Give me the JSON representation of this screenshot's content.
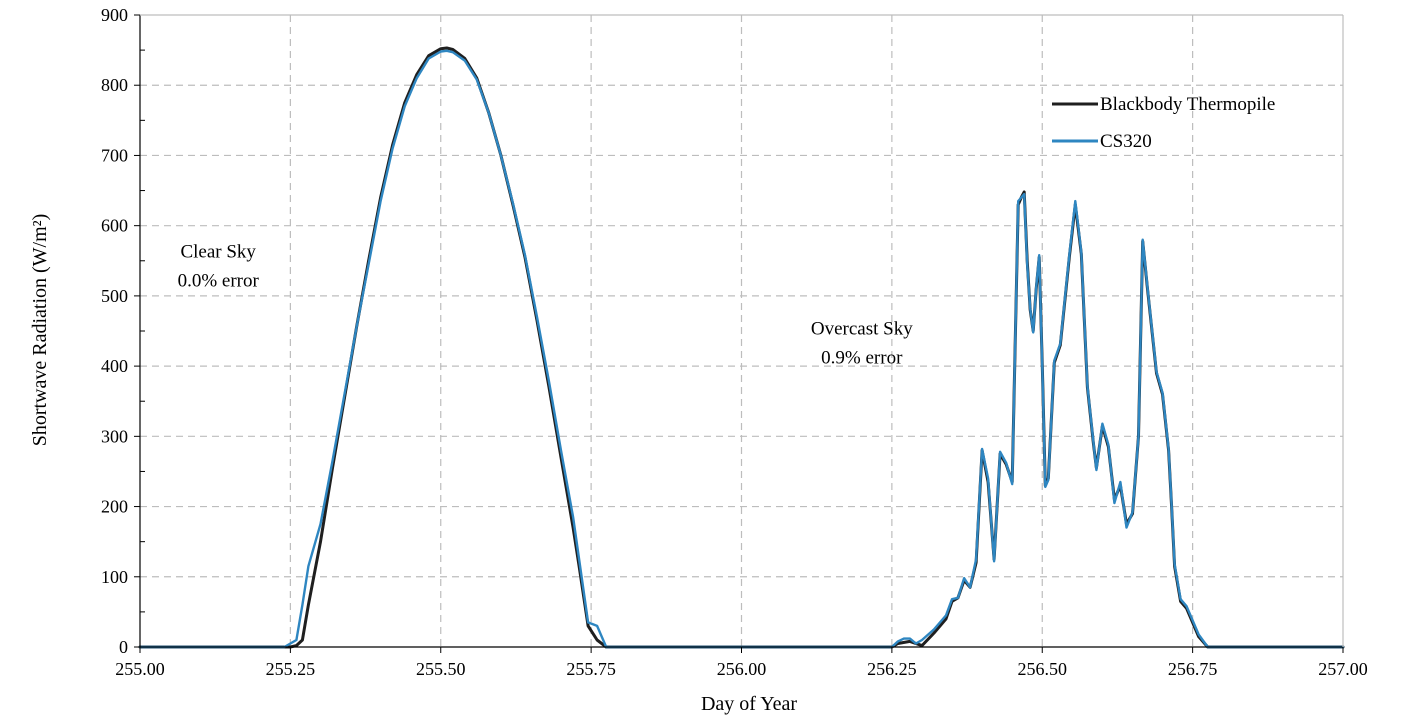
{
  "chart_data": {
    "type": "line",
    "title": "",
    "xlabel": "Day of Year",
    "ylabel": "Shortwave Radiation (W/m²)",
    "xlim": [
      255.0,
      257.0
    ],
    "ylim": [
      0,
      900
    ],
    "x_ticks": [
      "255.00",
      "255.25",
      "255.50",
      "255.75",
      "256.00",
      "256.25",
      "256.50",
      "256.75",
      "257.00"
    ],
    "y_ticks": [
      "0",
      "100",
      "200",
      "300",
      "400",
      "500",
      "600",
      "700",
      "800",
      "900"
    ],
    "grid": true,
    "legend_position": "top-right",
    "annotations": [
      {
        "lines": [
          "Clear Sky",
          "0.0% error"
        ],
        "x": 255.13,
        "y": 555
      },
      {
        "lines": [
          "Overcast Sky",
          "0.9% error"
        ],
        "x": 256.2,
        "y": 445
      }
    ],
    "series": [
      {
        "name": "Blackbody Thermopile",
        "color": "#1f1f1f",
        "points": [
          [
            255.0,
            0
          ],
          [
            255.24,
            0
          ],
          [
            255.25,
            0
          ],
          [
            255.26,
            2
          ],
          [
            255.27,
            10
          ],
          [
            255.28,
            60
          ],
          [
            255.3,
            150
          ],
          [
            255.32,
            255
          ],
          [
            255.34,
            355
          ],
          [
            255.36,
            455
          ],
          [
            255.38,
            550
          ],
          [
            255.4,
            640
          ],
          [
            255.42,
            715
          ],
          [
            255.44,
            775
          ],
          [
            255.46,
            815
          ],
          [
            255.48,
            842
          ],
          [
            255.5,
            852
          ],
          [
            255.51,
            853
          ],
          [
            255.52,
            851
          ],
          [
            255.54,
            838
          ],
          [
            255.56,
            810
          ],
          [
            255.58,
            760
          ],
          [
            255.6,
            700
          ],
          [
            255.62,
            630
          ],
          [
            255.64,
            555
          ],
          [
            255.66,
            465
          ],
          [
            255.68,
            370
          ],
          [
            255.7,
            270
          ],
          [
            255.72,
            170
          ],
          [
            255.73,
            115
          ],
          [
            255.745,
            30
          ],
          [
            255.76,
            10
          ],
          [
            255.775,
            0
          ],
          [
            256.25,
            0
          ],
          [
            256.26,
            5
          ],
          [
            256.28,
            8
          ],
          [
            256.3,
            2
          ],
          [
            256.32,
            20
          ],
          [
            256.34,
            40
          ],
          [
            256.35,
            65
          ],
          [
            256.36,
            70
          ],
          [
            256.37,
            95
          ],
          [
            256.38,
            85
          ],
          [
            256.39,
            120
          ],
          [
            256.4,
            280
          ],
          [
            256.41,
            235
          ],
          [
            256.42,
            125
          ],
          [
            256.43,
            275
          ],
          [
            256.44,
            260
          ],
          [
            256.45,
            235
          ],
          [
            256.46,
            630
          ],
          [
            256.465,
            640
          ],
          [
            256.47,
            648
          ],
          [
            256.475,
            550
          ],
          [
            256.48,
            480
          ],
          [
            256.485,
            450
          ],
          [
            256.49,
            510
          ],
          [
            256.495,
            555
          ],
          [
            256.5,
            400
          ],
          [
            256.505,
            230
          ],
          [
            256.51,
            240
          ],
          [
            256.52,
            405
          ],
          [
            256.53,
            430
          ],
          [
            256.545,
            555
          ],
          [
            256.555,
            630
          ],
          [
            256.565,
            560
          ],
          [
            256.575,
            370
          ],
          [
            256.585,
            290
          ],
          [
            256.59,
            255
          ],
          [
            256.6,
            315
          ],
          [
            256.61,
            285
          ],
          [
            256.62,
            210
          ],
          [
            256.63,
            230
          ],
          [
            256.64,
            175
          ],
          [
            256.65,
            190
          ],
          [
            256.66,
            300
          ],
          [
            256.667,
            578
          ],
          [
            256.675,
            510
          ],
          [
            256.685,
            430
          ],
          [
            256.69,
            390
          ],
          [
            256.7,
            360
          ],
          [
            256.71,
            280
          ],
          [
            256.715,
            200
          ],
          [
            256.72,
            115
          ],
          [
            256.73,
            65
          ],
          [
            256.74,
            55
          ],
          [
            256.75,
            35
          ],
          [
            256.76,
            15
          ],
          [
            256.775,
            0
          ],
          [
            257.0,
            0
          ]
        ]
      },
      {
        "name": "CS320",
        "color": "#2e86c1",
        "points": [
          [
            255.0,
            0
          ],
          [
            255.24,
            0
          ],
          [
            255.25,
            5
          ],
          [
            255.26,
            10
          ],
          [
            255.27,
            60
          ],
          [
            255.28,
            115
          ],
          [
            255.3,
            175
          ],
          [
            255.32,
            265
          ],
          [
            255.34,
            360
          ],
          [
            255.36,
            455
          ],
          [
            255.38,
            545
          ],
          [
            255.4,
            635
          ],
          [
            255.42,
            710
          ],
          [
            255.44,
            770
          ],
          [
            255.46,
            810
          ],
          [
            255.48,
            838
          ],
          [
            255.5,
            848
          ],
          [
            255.51,
            849
          ],
          [
            255.52,
            847
          ],
          [
            255.54,
            835
          ],
          [
            255.56,
            808
          ],
          [
            255.58,
            760
          ],
          [
            255.6,
            700
          ],
          [
            255.62,
            632
          ],
          [
            255.64,
            558
          ],
          [
            255.66,
            470
          ],
          [
            255.68,
            378
          ],
          [
            255.7,
            280
          ],
          [
            255.72,
            185
          ],
          [
            255.73,
            125
          ],
          [
            255.745,
            35
          ],
          [
            255.76,
            30
          ],
          [
            255.775,
            0
          ],
          [
            256.25,
            0
          ],
          [
            256.26,
            8
          ],
          [
            256.27,
            12
          ],
          [
            256.28,
            12
          ],
          [
            256.29,
            5
          ],
          [
            256.3,
            10
          ],
          [
            256.32,
            25
          ],
          [
            256.34,
            45
          ],
          [
            256.35,
            68
          ],
          [
            256.36,
            70
          ],
          [
            256.37,
            98
          ],
          [
            256.38,
            85
          ],
          [
            256.39,
            125
          ],
          [
            256.4,
            282
          ],
          [
            256.41,
            240
          ],
          [
            256.42,
            122
          ],
          [
            256.43,
            278
          ],
          [
            256.44,
            262
          ],
          [
            256.45,
            232
          ],
          [
            256.46,
            635
          ],
          [
            256.465,
            640
          ],
          [
            256.47,
            645
          ],
          [
            256.475,
            545
          ],
          [
            256.48,
            482
          ],
          [
            256.485,
            448
          ],
          [
            256.49,
            512
          ],
          [
            256.495,
            558
          ],
          [
            256.5,
            398
          ],
          [
            256.505,
            228
          ],
          [
            256.51,
            238
          ],
          [
            256.52,
            408
          ],
          [
            256.53,
            432
          ],
          [
            256.545,
            558
          ],
          [
            256.555,
            635
          ],
          [
            256.565,
            562
          ],
          [
            256.575,
            372
          ],
          [
            256.585,
            292
          ],
          [
            256.59,
            252
          ],
          [
            256.6,
            318
          ],
          [
            256.61,
            288
          ],
          [
            256.62,
            205
          ],
          [
            256.63,
            235
          ],
          [
            256.64,
            170
          ],
          [
            256.65,
            192
          ],
          [
            256.66,
            300
          ],
          [
            256.667,
            580
          ],
          [
            256.675,
            512
          ],
          [
            256.685,
            432
          ],
          [
            256.69,
            392
          ],
          [
            256.7,
            362
          ],
          [
            256.71,
            282
          ],
          [
            256.715,
            202
          ],
          [
            256.72,
            118
          ],
          [
            256.73,
            68
          ],
          [
            256.74,
            58
          ],
          [
            256.75,
            38
          ],
          [
            256.76,
            18
          ],
          [
            256.775,
            0
          ],
          [
            257.0,
            0
          ]
        ]
      }
    ]
  }
}
